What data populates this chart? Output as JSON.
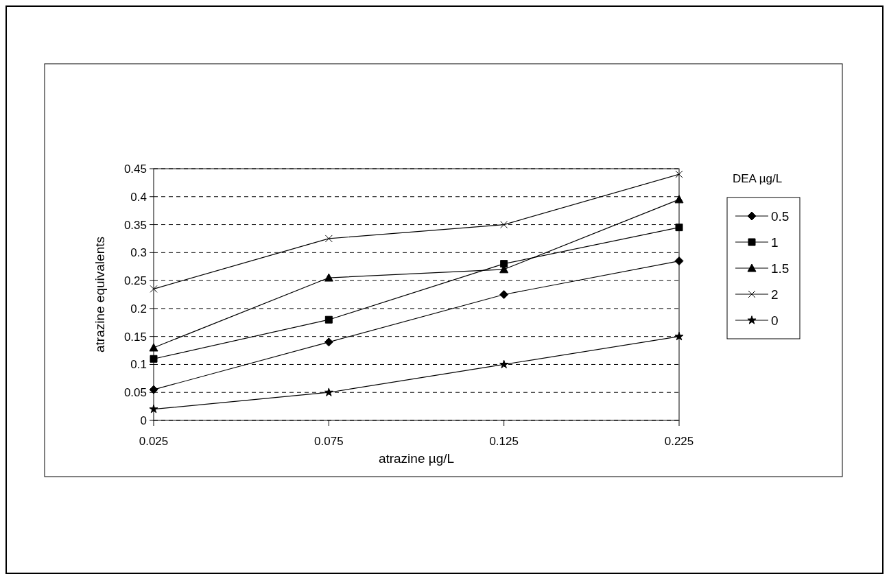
{
  "chart_data": {
    "type": "line",
    "xlabel": "atrazine µg/L",
    "ylabel": "atrazine equivalents",
    "legend_title": "DEA µg/L",
    "categories": [
      "0.025",
      "0.075",
      "0.125",
      "0.225"
    ],
    "series": [
      {
        "name": "0.5",
        "color": "#000000",
        "marker": "diamond",
        "values": [
          0.055,
          0.14,
          0.225,
          0.285
        ]
      },
      {
        "name": "1",
        "color": "#000000",
        "marker": "square",
        "values": [
          0.11,
          0.18,
          0.28,
          0.345
        ]
      },
      {
        "name": "1.5",
        "color": "#000000",
        "marker": "triangle",
        "values": [
          0.13,
          0.255,
          0.27,
          0.395
        ]
      },
      {
        "name": "2",
        "color": "#000000",
        "marker": "cross",
        "values": [
          0.235,
          0.325,
          0.35,
          0.44
        ]
      },
      {
        "name": "0",
        "color": "#000000",
        "marker": "star",
        "values": [
          0.02,
          0.05,
          0.1,
          0.15
        ]
      }
    ],
    "ylim": [
      0,
      0.45
    ],
    "yticks": [
      0,
      0.05,
      0.1,
      0.15,
      0.2,
      0.25,
      0.3,
      0.35,
      0.4,
      0.45
    ],
    "grid": "y",
    "legend": "right",
    "line_style": "solid"
  }
}
